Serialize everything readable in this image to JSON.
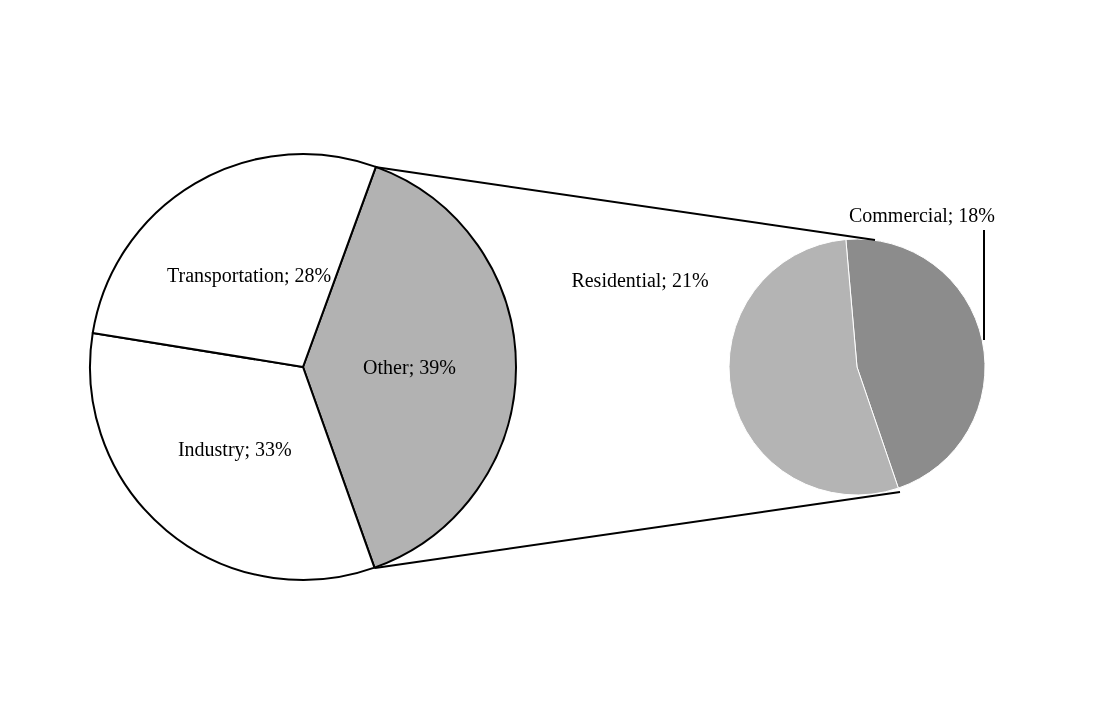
{
  "chart_data": [
    {
      "type": "pie",
      "categories": [
        "Other",
        "Industry",
        "Transportation"
      ],
      "values": [
        39,
        33,
        28
      ],
      "value_labels": [
        "39%",
        "33%",
        "28%"
      ],
      "colors": [
        "#b2b2b2",
        "#ffffff",
        "#ffffff"
      ]
    },
    {
      "type": "pie",
      "categories": [
        "Commercial",
        "Residential"
      ],
      "values": [
        18,
        21
      ],
      "value_labels": [
        "18%",
        "21%"
      ],
      "colors": [
        "#8c8c8c",
        "#b4b4b4"
      ]
    }
  ]
}
